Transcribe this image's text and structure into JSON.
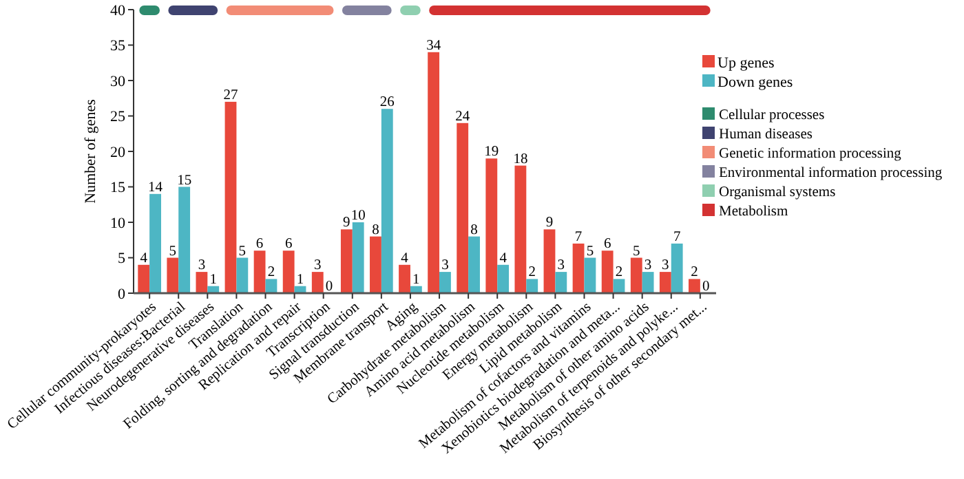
{
  "chart_data": {
    "type": "bar",
    "ylabel": "Number of genes",
    "categories": [
      "Cellular community-prokaryotes",
      "Infectious diseases:Bacterial",
      "Neurodegenerative diseases",
      "Translation",
      "Folding, sorting and degradation",
      "Replication and repair",
      "Transcription",
      "Signal transduction",
      "Membrane transport",
      "Aging",
      "Carbohydrate metabolism",
      "Amino acid metabolism",
      "Nucleotide metabolism",
      "Energy metabolism",
      "Lipid metabolism",
      "Metabolism of cofactors and vitamins",
      "Xenobiotics biodegradation and meta...",
      "Metabolism of other amino acids",
      "Metabolism of terpenoids and polyke...",
      "Biosynthesis of other secondary met..."
    ],
    "series": [
      {
        "name": "Up genes",
        "color": "#e8483b",
        "values": [
          4,
          5,
          3,
          27,
          6,
          6,
          3,
          9,
          8,
          4,
          34,
          24,
          19,
          18,
          9,
          7,
          6,
          5,
          3,
          2
        ]
      },
      {
        "name": "Down genes",
        "color": "#4db6c4",
        "values": [
          14,
          15,
          1,
          5,
          2,
          1,
          0,
          10,
          26,
          1,
          3,
          8,
          4,
          2,
          3,
          5,
          2,
          3,
          7,
          0
        ]
      }
    ],
    "ylim": [
      0,
      40
    ],
    "yticks": [
      0,
      5,
      10,
      15,
      20,
      25,
      30,
      35,
      40
    ],
    "data_labels": true,
    "legend": "top right",
    "annotations": [
      "Cellular processes",
      "Human diseases",
      "Genetic information processing",
      "Environmental information processing",
      "Organismal systems",
      "Metabolism"
    ]
  }
}
